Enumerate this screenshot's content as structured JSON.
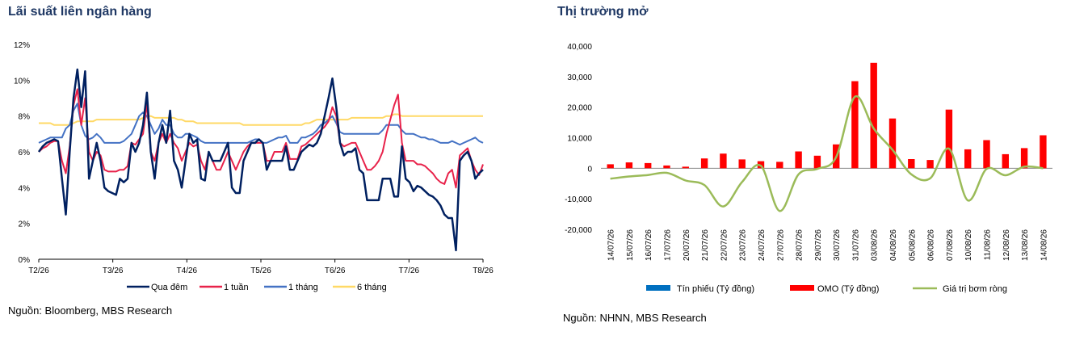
{
  "left_panel": {
    "title": "Lãi suất liên ngân hàng",
    "source": "Nguồn: Bloomberg, MBS Research"
  },
  "right_panel": {
    "title": "Thị trường mở",
    "source": "Nguồn: NHNN, MBS Research"
  },
  "chart_data": [
    {
      "type": "line",
      "title": "Lãi suất liên ngân hàng",
      "x_ticks": [
        "T2/26",
        "T3/26",
        "T4/26",
        "T5/26",
        "T6/26",
        "T7/26",
        "T8/26"
      ],
      "y_ticks": [
        "0%",
        "2%",
        "4%",
        "6%",
        "8%",
        "10%",
        "12%"
      ],
      "ylim": [
        0,
        12
      ],
      "y_unit": "%",
      "legend_position": "bottom",
      "grid": false,
      "series": [
        {
          "name": "Qua đêm",
          "color": "#002060",
          "values": [
            6.0,
            6.3,
            6.5,
            6.6,
            6.7,
            6.6,
            4.5,
            2.5,
            6.0,
            9.0,
            10.6,
            8.5,
            10.5,
            4.5,
            5.5,
            6.5,
            5.5,
            4.0,
            3.8,
            3.7,
            3.6,
            4.5,
            4.3,
            4.5,
            6.5,
            6.0,
            6.5,
            7.5,
            9.3,
            6.0,
            4.5,
            6.5,
            7.5,
            6.5,
            8.3,
            5.5,
            5.0,
            4.0,
            5.5,
            7.0,
            6.5,
            6.7,
            4.5,
            4.4,
            6.0,
            5.5,
            5.5,
            5.5,
            6.0,
            6.5,
            4.0,
            3.7,
            3.7,
            5.5,
            6.0,
            6.5,
            6.5,
            6.7,
            6.5,
            5.0,
            5.5,
            5.5,
            5.5,
            5.5,
            6.3,
            5.0,
            5.0,
            5.5,
            6.0,
            6.2,
            6.4,
            6.3,
            6.5,
            7.0,
            8.0,
            9.0,
            10.1,
            8.5,
            6.5,
            5.8,
            6.0,
            6.0,
            6.2,
            5.0,
            4.8,
            3.3,
            3.3,
            3.3,
            3.3,
            4.5,
            4.5,
            4.5,
            3.5,
            3.5,
            6.3,
            4.5,
            4.3,
            3.8,
            4.1,
            4.0,
            3.8,
            3.6,
            3.5,
            3.3,
            3.0,
            2.5,
            2.3,
            2.3,
            0.5,
            5.5,
            5.8,
            6.0,
            5.5,
            4.5,
            4.8,
            5.0
          ],
          "legend_label": "Qua đêm"
        },
        {
          "name": "1 tuần",
          "color": "#e8224a",
          "values": [
            6.0,
            6.2,
            6.3,
            6.5,
            6.6,
            6.6,
            5.5,
            4.8,
            6.3,
            8.6,
            9.5,
            7.5,
            9.0,
            6.0,
            5.5,
            6.0,
            5.8,
            5.0,
            4.9,
            4.9,
            4.9,
            5.0,
            5.0,
            5.2,
            6.5,
            6.4,
            6.7,
            7.0,
            8.7,
            6.0,
            5.5,
            6.5,
            7.0,
            6.5,
            7.0,
            6.5,
            6.2,
            5.5,
            6.0,
            6.5,
            6.3,
            6.4,
            5.5,
            5.0,
            6.0,
            5.5,
            5.0,
            5.0,
            5.5,
            6.0,
            5.5,
            5.0,
            5.5,
            6.0,
            6.3,
            6.5,
            6.5,
            6.5,
            6.5,
            5.5,
            5.5,
            6.0,
            6.0,
            6.0,
            6.5,
            5.6,
            5.6,
            5.6,
            6.3,
            6.4,
            6.6,
            6.8,
            7.0,
            7.2,
            7.4,
            7.7,
            8.5,
            8.0,
            6.5,
            6.3,
            6.4,
            6.5,
            6.5,
            6.0,
            5.5,
            5.0,
            5.0,
            5.2,
            5.5,
            6.0,
            7.0,
            7.8,
            8.6,
            9.2,
            6.5,
            5.5,
            5.5,
            5.5,
            5.3,
            5.3,
            5.2,
            5.0,
            4.8,
            4.5,
            4.3,
            4.2,
            4.8,
            5.0,
            4.0,
            5.8,
            6.0,
            6.2,
            5.5,
            5.0,
            4.7,
            5.3
          ],
          "legend_label": "1 tuần"
        },
        {
          "name": "1 tháng",
          "color": "#4472c4",
          "values": [
            6.5,
            6.6,
            6.7,
            6.8,
            6.8,
            6.8,
            6.8,
            7.3,
            7.5,
            8.3,
            8.7,
            7.5,
            6.9,
            6.7,
            6.8,
            7.0,
            6.8,
            6.5,
            6.5,
            6.5,
            6.5,
            6.5,
            6.6,
            6.8,
            7.0,
            7.5,
            8.0,
            8.2,
            8.0,
            7.5,
            7.0,
            7.3,
            7.8,
            7.5,
            7.5,
            7.0,
            6.8,
            6.8,
            7.0,
            7.0,
            6.9,
            6.8,
            6.6,
            6.5,
            6.5,
            6.5,
            6.5,
            6.5,
            6.5,
            6.5,
            6.5,
            6.5,
            6.5,
            6.5,
            6.5,
            6.6,
            6.7,
            6.7,
            6.5,
            6.5,
            6.6,
            6.7,
            6.8,
            6.8,
            6.9,
            6.5,
            6.5,
            6.5,
            6.8,
            6.8,
            6.9,
            7.0,
            7.2,
            7.5,
            7.6,
            7.8,
            8.0,
            7.6,
            7.1,
            7.0,
            7.0,
            7.0,
            7.0,
            7.0,
            7.0,
            7.0,
            7.0,
            7.0,
            7.0,
            7.2,
            7.5,
            7.5,
            7.5,
            7.5,
            7.2,
            7.0,
            7.0,
            7.0,
            6.9,
            6.8,
            6.8,
            6.7,
            6.7,
            6.6,
            6.5,
            6.5,
            6.5,
            6.6,
            6.5,
            6.4,
            6.5,
            6.6,
            6.7,
            6.8,
            6.6,
            6.5
          ],
          "legend_label": "1 tháng"
        },
        {
          "name": "6 tháng",
          "color": "#ffd966",
          "values": [
            7.6,
            7.6,
            7.6,
            7.6,
            7.5,
            7.5,
            7.5,
            7.5,
            7.5,
            7.6,
            7.7,
            7.7,
            7.7,
            7.7,
            7.7,
            7.8,
            7.8,
            7.8,
            7.8,
            7.8,
            7.8,
            7.8,
            7.8,
            7.8,
            7.8,
            7.8,
            7.8,
            7.9,
            8.0,
            8.0,
            7.9,
            7.9,
            7.9,
            7.9,
            7.9,
            7.9,
            7.8,
            7.8,
            7.7,
            7.7,
            7.7,
            7.6,
            7.6,
            7.6,
            7.6,
            7.6,
            7.6,
            7.6,
            7.6,
            7.6,
            7.6,
            7.6,
            7.6,
            7.5,
            7.5,
            7.5,
            7.5,
            7.5,
            7.5,
            7.5,
            7.5,
            7.5,
            7.5,
            7.5,
            7.5,
            7.5,
            7.5,
            7.5,
            7.5,
            7.6,
            7.6,
            7.7,
            7.8,
            7.8,
            7.8,
            7.8,
            7.8,
            7.8,
            7.8,
            7.8,
            7.8,
            7.9,
            7.9,
            7.9,
            7.9,
            7.9,
            7.9,
            7.9,
            7.9,
            7.9,
            8.0,
            8.0,
            8.1,
            8.1,
            8.0,
            8.0,
            8.0,
            8.0,
            8.0,
            8.0,
            8.0,
            8.0,
            8.0,
            8.0,
            8.0,
            8.0,
            8.0,
            8.0,
            8.0,
            8.0,
            8.0,
            8.0,
            8.0,
            8.0,
            8.0,
            8.0
          ],
          "legend_label": "6 tháng"
        }
      ]
    },
    {
      "type": "bar",
      "title": "Thị trường mở",
      "categories": [
        "14/07/26",
        "15/07/26",
        "16/07/26",
        "17/07/26",
        "20/07/26",
        "21/07/26",
        "22/07/26",
        "23/07/26",
        "24/07/26",
        "27/07/26",
        "28/07/26",
        "29/07/26",
        "30/07/26",
        "31/07/26",
        "03/08/26",
        "04/08/26",
        "05/08/26",
        "06/08/26",
        "07/08/26",
        "10/08/26",
        "11/08/26",
        "12/08/26",
        "13/08/26",
        "14/08/26"
      ],
      "y_ticks": [
        "40,000",
        "30,000",
        "20,000",
        "10,000",
        "0",
        "-10,000",
        "-20,000"
      ],
      "ylim": [
        -20000,
        40000
      ],
      "legend_position": "bottom",
      "grid": false,
      "series": [
        {
          "name": "Tín phiếu (Tỷ đồng)",
          "color": "#0070c0",
          "values": [
            0,
            0,
            0,
            0,
            0,
            0,
            0,
            0,
            0,
            0,
            0,
            0,
            0,
            0,
            0,
            0,
            0,
            0,
            0,
            0,
            0,
            0,
            0,
            0
          ]
        },
        {
          "name": "OMO (Tỷ đồng)",
          "color": "#ff0000",
          "values": [
            1300,
            1900,
            1700,
            900,
            500,
            3200,
            4800,
            2900,
            2300,
            2100,
            5500,
            4100,
            7800,
            28500,
            34500,
            16300,
            3000,
            2700,
            19200,
            6200,
            9200,
            4600,
            6600,
            10800
          ]
        },
        {
          "name": "Giá trị bơm ròng",
          "color": "#9bbb59",
          "type": "line",
          "values": [
            -3400,
            -2700,
            -2200,
            -1500,
            -4000,
            -5500,
            -12500,
            -4500,
            800,
            -14000,
            -2000,
            -200,
            3600,
            23400,
            13000,
            6000,
            -2000,
            -3300,
            6400,
            -10500,
            -200,
            -2300,
            500,
            0
          ]
        }
      ]
    }
  ]
}
